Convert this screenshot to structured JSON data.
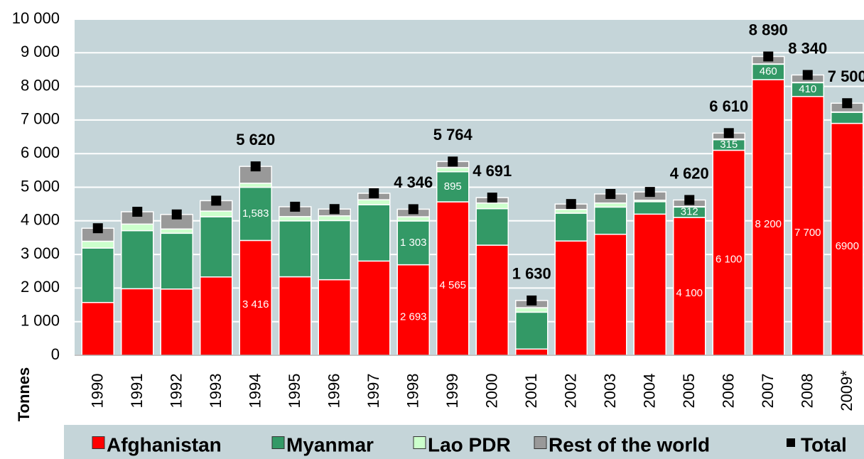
{
  "chart_data": {
    "type": "stacked-bar",
    "y_label": "Tonnes",
    "categories": [
      "1990",
      "1991",
      "1992",
      "1993",
      "1994",
      "1995",
      "1996",
      "1997",
      "1998",
      "1999",
      "2000",
      "2001",
      "2002",
      "2003",
      "2004",
      "2005",
      "2006",
      "2007",
      "2008",
      "2009*"
    ],
    "series": [
      {
        "name": "Afghanistan",
        "color": "#ff0000",
        "values": [
          1570,
          1980,
          1970,
          2330,
          3416,
          2335,
          2248,
          2804,
          2693,
          4565,
          3276,
          185,
          3400,
          3600,
          4200,
          4100,
          6100,
          8200,
          7700,
          6900
        ],
        "value_labels": [
          null,
          null,
          null,
          null,
          "3 416",
          null,
          null,
          null,
          "2 693",
          "4 565",
          null,
          null,
          null,
          null,
          null,
          "4 100",
          "6 100",
          "8 200",
          "7 700",
          "6900"
        ]
      },
      {
        "name": "Myanmar",
        "color": "#339966",
        "values": [
          1621,
          1728,
          1660,
          1791,
          1583,
          1664,
          1760,
          1676,
          1303,
          895,
          1087,
          1097,
          828,
          810,
          370,
          312,
          315,
          460,
          410,
          330
        ],
        "value_labels": [
          null,
          null,
          null,
          null,
          "1,583",
          null,
          null,
          null,
          "1 303",
          "895",
          null,
          null,
          null,
          null,
          null,
          "312",
          "315",
          "460",
          "410",
          null
        ]
      },
      {
        "name": "Lao PDR",
        "color": "#ccffcc",
        "values": [
          202,
          196,
          127,
          169,
          120,
          128,
          140,
          147,
          124,
          124,
          167,
          134,
          112,
          120,
          43,
          14,
          20,
          9,
          10,
          11
        ]
      },
      {
        "name": "Rest of the world",
        "color": "#999999",
        "values": [
          387,
          366,
          433,
          310,
          501,
          293,
          202,
          193,
          226,
          180,
          161,
          214,
          160,
          270,
          247,
          194,
          175,
          221,
          220,
          259
        ]
      }
    ],
    "total": {
      "name": "Total",
      "color": "#000000",
      "values": [
        3780,
        4270,
        4190,
        4600,
        5620,
        4420,
        4350,
        4820,
        4346,
        5764,
        4691,
        1630,
        4500,
        4800,
        4860,
        4620,
        6610,
        8890,
        8340,
        7500
      ],
      "value_labels": [
        null,
        null,
        null,
        null,
        "5 620",
        null,
        null,
        null,
        "4 346",
        "5 764",
        "4 691",
        "1 630",
        null,
        null,
        null,
        "4 620",
        "6 610",
        "8 890",
        "8 340",
        "7 500"
      ]
    },
    "ylim": [
      0,
      10000
    ],
    "yticks": [
      0,
      {
        "value": 1000,
        "label": "1 000"
      },
      {
        "value": 2000,
        "label": "2 000"
      },
      {
        "value": 3000,
        "label": "3 000"
      },
      {
        "value": 4000,
        "label": "4 000"
      },
      {
        "value": 5000,
        "label": "5 000"
      },
      {
        "value": 6000,
        "label": "6 000"
      },
      {
        "value": 7000,
        "label": "7 000"
      },
      {
        "value": 8000,
        "label": "8 000"
      },
      {
        "value": 9000,
        "label": "9 000"
      },
      {
        "value": 10000,
        "label": "10 000"
      }
    ],
    "grid": true,
    "legend": "bottom"
  }
}
